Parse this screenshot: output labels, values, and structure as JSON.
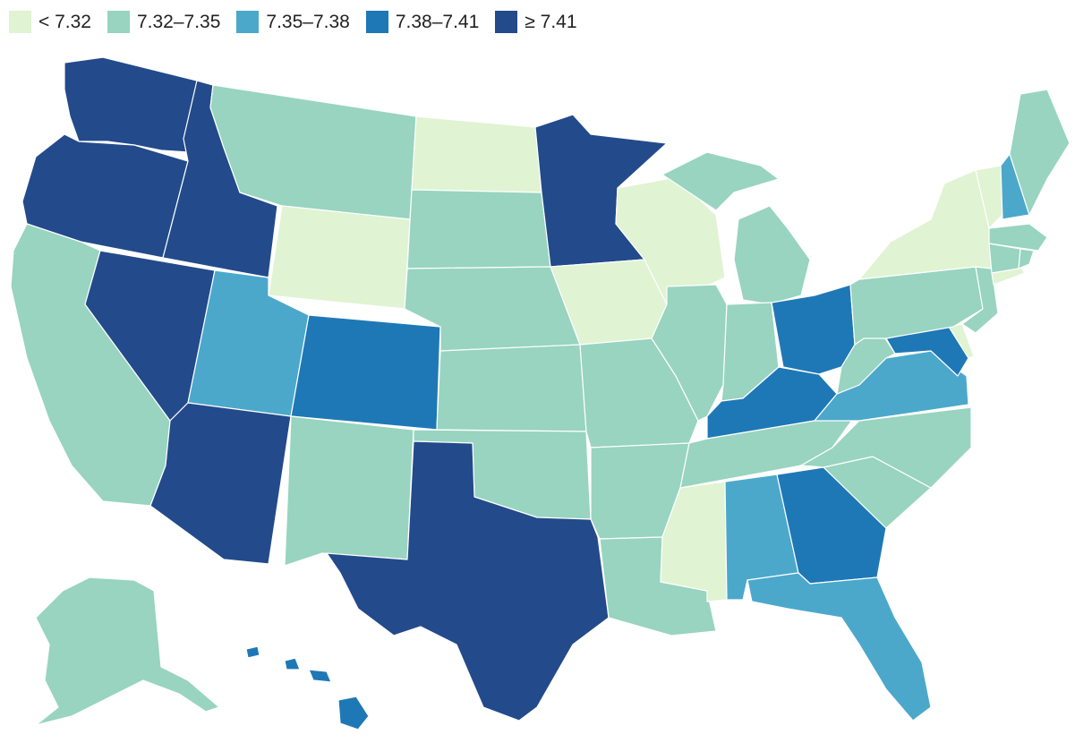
{
  "legend": {
    "items": [
      {
        "label": "< 7.32",
        "color": "#e0f3d3"
      },
      {
        "label": "7.32–7.35",
        "color": "#98d4c0"
      },
      {
        "label": "7.35–7.38",
        "color": "#4ba8cb"
      },
      {
        "label": "7.38–7.41",
        "color": "#1f78b6"
      },
      {
        "label": "≥ 7.41",
        "color": "#234a8b"
      }
    ]
  },
  "states": {
    "WA": 4,
    "OR": 4,
    "ID": 4,
    "NV": 4,
    "AZ": 4,
    "TX": 4,
    "MN": 4,
    "CA": 1,
    "MT": 1,
    "UT": 2,
    "CO": 3,
    "NM": 1,
    "WY": 0,
    "ND": 0,
    "SD": 1,
    "NE": 1,
    "KS": 1,
    "OK": 1,
    "IA": 0,
    "MO": 1,
    "AR": 1,
    "LA": 1,
    "WI": 0,
    "IL": 1,
    "MI": 1,
    "IN": 1,
    "OH": 3,
    "KY": 3,
    "TN": 1,
    "MS": 0,
    "AL": 2,
    "GA": 3,
    "FL": 2,
    "SC": 1,
    "NC": 1,
    "VA": 2,
    "WV": 1,
    "PA": 1,
    "NY": 0,
    "VT": 0,
    "NH": 2,
    "ME": 1,
    "MA": 1,
    "CT": 1,
    "RI": 1,
    "NJ": 1,
    "DE": 0,
    "MD": 3,
    "AK": 1,
    "HI": 3
  }
}
